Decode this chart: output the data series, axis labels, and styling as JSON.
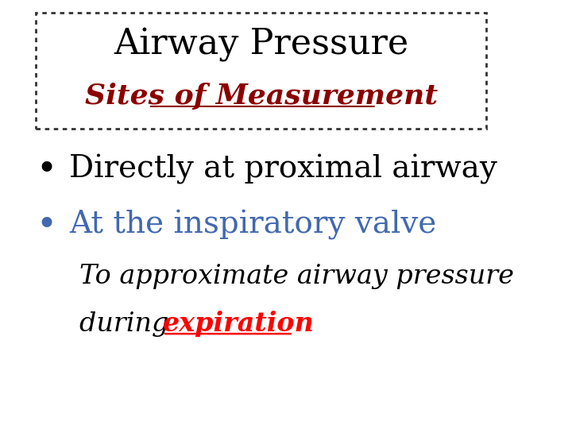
{
  "title": "Airway Pressure",
  "subtitle": "Sites of Measurement",
  "subtitle_color": "#8B0000",
  "bullet1": "Directly at proximal airway",
  "bullet1_color": "#000000",
  "bullet2": "At the inspiratory valve",
  "bullet2_color": "#4169B0",
  "subtext_line1": "To approximate airway pressure",
  "subtext_line2_before": "during ",
  "subtext_italic_color": "#000000",
  "expiration_text": "expiration",
  "expiration_color": "#FF0000",
  "background_color": "#FFFFFF",
  "box_border_color": "#333333",
  "title_fontsize": 32,
  "subtitle_fontsize": 26,
  "bullet_fontsize": 28,
  "subtext_fontsize": 24
}
